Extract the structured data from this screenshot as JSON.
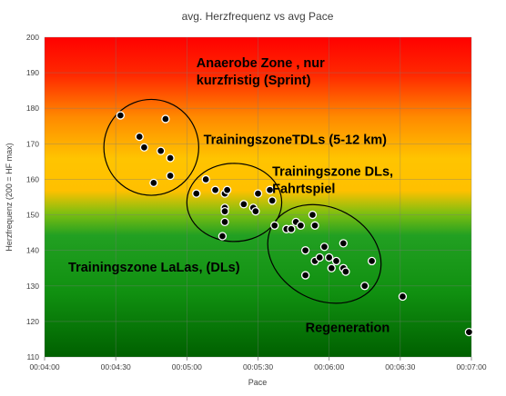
{
  "chart_data": {
    "type": "scatter",
    "title": "avg. Herzfrequenz vs avg Pace",
    "xlabel": "Pace",
    "ylabel": "Herzfrequenz (200 = HF max)",
    "xlim_seconds": [
      240,
      420
    ],
    "ylim": [
      110,
      200
    ],
    "x_ticks": [
      "00:04:00",
      "00:04:30",
      "00:05:00",
      "00:05:30",
      "00:06:00",
      "00:06:30",
      "00:07:00"
    ],
    "y_ticks": [
      "110",
      "120",
      "130",
      "140",
      "150",
      "160",
      "170",
      "180",
      "190",
      "200"
    ],
    "grid": true,
    "background": "vertical gradient red (top) -> orange -> yellow -> green -> dark green (bottom)",
    "points": [
      {
        "pace": "00:04:32",
        "hr": 178
      },
      {
        "pace": "00:04:40",
        "hr": 172
      },
      {
        "pace": "00:04:42",
        "hr": 169
      },
      {
        "pace": "00:04:46",
        "hr": 159
      },
      {
        "pace": "00:04:49",
        "hr": 168
      },
      {
        "pace": "00:04:51",
        "hr": 177
      },
      {
        "pace": "00:04:53",
        "hr": 166
      },
      {
        "pace": "00:04:53",
        "hr": 161
      },
      {
        "pace": "00:05:04",
        "hr": 156
      },
      {
        "pace": "00:05:08",
        "hr": 160
      },
      {
        "pace": "00:05:12",
        "hr": 157
      },
      {
        "pace": "00:05:16",
        "hr": 156
      },
      {
        "pace": "00:05:17",
        "hr": 157
      },
      {
        "pace": "00:05:16",
        "hr": 152
      },
      {
        "pace": "00:05:16",
        "hr": 151
      },
      {
        "pace": "00:05:16",
        "hr": 148
      },
      {
        "pace": "00:05:15",
        "hr": 144
      },
      {
        "pace": "00:05:24",
        "hr": 153
      },
      {
        "pace": "00:05:28",
        "hr": 152
      },
      {
        "pace": "00:05:29",
        "hr": 151
      },
      {
        "pace": "00:05:30",
        "hr": 156
      },
      {
        "pace": "00:05:35",
        "hr": 157
      },
      {
        "pace": "00:05:36",
        "hr": 154
      },
      {
        "pace": "00:05:37",
        "hr": 147
      },
      {
        "pace": "00:05:42",
        "hr": 146
      },
      {
        "pace": "00:05:44",
        "hr": 146
      },
      {
        "pace": "00:05:46",
        "hr": 148
      },
      {
        "pace": "00:05:48",
        "hr": 147
      },
      {
        "pace": "00:05:50",
        "hr": 140
      },
      {
        "pace": "00:05:50",
        "hr": 133
      },
      {
        "pace": "00:05:53",
        "hr": 150
      },
      {
        "pace": "00:05:54",
        "hr": 147
      },
      {
        "pace": "00:05:54",
        "hr": 137
      },
      {
        "pace": "00:05:56",
        "hr": 138
      },
      {
        "pace": "00:05:58",
        "hr": 141
      },
      {
        "pace": "00:06:00",
        "hr": 138
      },
      {
        "pace": "00:06:01",
        "hr": 135
      },
      {
        "pace": "00:06:03",
        "hr": 137
      },
      {
        "pace": "00:06:06",
        "hr": 135
      },
      {
        "pace": "00:06:06",
        "hr": 142
      },
      {
        "pace": "00:06:07",
        "hr": 134
      },
      {
        "pace": "00:06:15",
        "hr": 130
      },
      {
        "pace": "00:06:18",
        "hr": 137
      },
      {
        "pace": "00:06:31",
        "hr": 127
      },
      {
        "pace": "00:06:59",
        "hr": 117
      }
    ],
    "zones": [
      {
        "id": "intervals",
        "ellipse": {
          "cx_pace": "00:04:45",
          "cy_hr": 169,
          "rx_sec": 20,
          "ry_hr": 13.5
        }
      },
      {
        "id": "tdl",
        "ellipse": {
          "cx_pace": "00:05:20",
          "cy_hr": 153.5,
          "rx_sec": 20,
          "ry_hr": 11
        }
      },
      {
        "id": "dl",
        "ellipse": {
          "cx_pace": "00:05:58",
          "cy_hr": 139,
          "rx_sec": 25,
          "ry_hr": 13
        }
      }
    ],
    "annotations": [
      {
        "lines": [
          "Anaerobe Zone , nur",
          "kurzfristig (Sprint)"
        ],
        "at_pace": "00:05:04",
        "at_hr": 191.5
      },
      {
        "lines": [
          "TrainingszoneTDLs  (5-12 km)"
        ],
        "at_pace": "00:05:07",
        "at_hr": 170
      },
      {
        "lines": [
          "Trainingszone DLs,",
          "Fahrtspiel"
        ],
        "at_pace": "00:05:36",
        "at_hr": 161
      },
      {
        "lines": [
          "Trainingszone LaLas, (DLs)"
        ],
        "at_pace": "00:04:10",
        "at_hr": 134
      },
      {
        "lines": [
          "Regeneration"
        ],
        "at_pace": "00:05:50",
        "at_hr": 117
      }
    ]
  }
}
